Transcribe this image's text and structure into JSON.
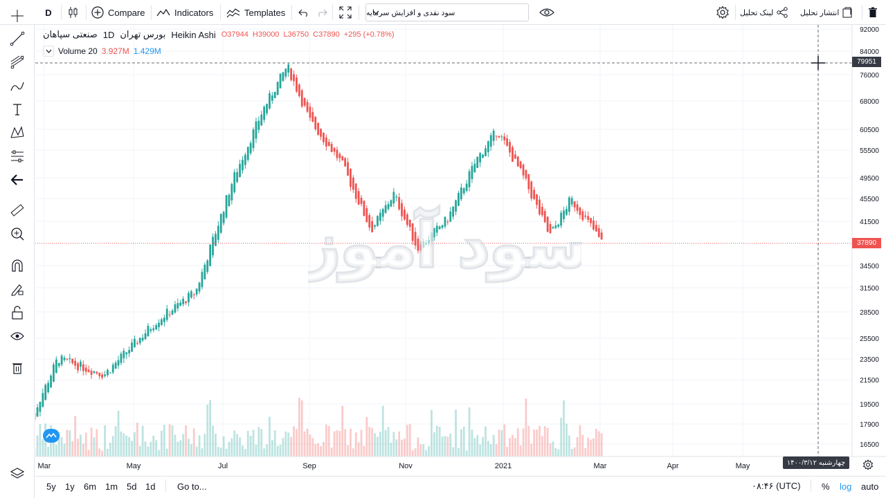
{
  "toolbar": {
    "interval": "D",
    "compare_label": "Compare",
    "indicators_label": "Indicators",
    "templates_label": "Templates",
    "symbol_select": "سود نقدی و افزایش سرمایه",
    "link_label": "لینک تحلیل",
    "publish_label": "انتشار تحلیل"
  },
  "legend": {
    "symbol": "صنعتی سپاهان",
    "interval": "1D",
    "exchange": "بورس تهران",
    "chart_type": "Heikin Ashi",
    "open": "O37944",
    "high": "H39000",
    "low": "L36750",
    "close": "C37890",
    "change": "+295 (+0.78%)"
  },
  "volume_legend": {
    "label": "Volume 20",
    "value1": "3.927M",
    "value2": "1.429M"
  },
  "watermark": "سود آموز",
  "price_axis": {
    "ticks": [
      "92000",
      "84000",
      "76000",
      "68000",
      "60500",
      "55500",
      "49500",
      "45500",
      "41500",
      "34500",
      "31500",
      "28500",
      "25500",
      "23500",
      "21500",
      "19500",
      "17900",
      "16500"
    ],
    "crosshair_price": "79951",
    "last_price": "37890"
  },
  "time_axis": {
    "ticks": [
      "Mar",
      "May",
      "Jul",
      "Sep",
      "Nov",
      "2021",
      "Mar",
      "Apr",
      "May"
    ],
    "crosshair_date": "چهارشنبه ۱۴۰۰/۳/۱۲"
  },
  "bottom": {
    "ranges": [
      "5y",
      "1y",
      "6m",
      "1m",
      "5d",
      "1d"
    ],
    "goto_label": "Go to...",
    "clock": "۰۸:۴۶ (UTC)",
    "percent_label": "%",
    "log_label": "log",
    "auto_label": "auto"
  },
  "colors": {
    "up": "#26a69a",
    "down": "#ef5350",
    "crosshair": "#363a45",
    "last_price": "#ef5350"
  },
  "chart_data": {
    "type": "candlestick",
    "style": "Heikin Ashi",
    "log_scale": true,
    "ylim": [
      16000,
      93000
    ],
    "series": [
      {
        "date": "2020-02-20",
        "close": 18000
      },
      {
        "date": "2020-03-10",
        "close": 23500
      },
      {
        "date": "2020-04-10",
        "close": 22000
      },
      {
        "date": "2020-05-15",
        "close": 27500
      },
      {
        "date": "2020-06-10",
        "close": 31000
      },
      {
        "date": "2020-07-05",
        "close": 49500
      },
      {
        "date": "2020-07-25",
        "close": 66000
      },
      {
        "date": "2020-08-10",
        "close": 79000
      },
      {
        "date": "2020-08-25",
        "close": 63000
      },
      {
        "date": "2020-09-15",
        "close": 53000
      },
      {
        "date": "2020-10-05",
        "close": 40000
      },
      {
        "date": "2020-10-20",
        "close": 46500
      },
      {
        "date": "2020-11-05",
        "close": 37000
      },
      {
        "date": "2020-11-25",
        "close": 42000
      },
      {
        "date": "2020-12-15",
        "close": 54000
      },
      {
        "date": "2020-12-28",
        "close": 60500
      },
      {
        "date": "2021-01-15",
        "close": 49500
      },
      {
        "date": "2021-02-01",
        "close": 39000
      },
      {
        "date": "2021-02-15",
        "close": 45500
      },
      {
        "date": "2021-03-01",
        "close": 40500
      },
      {
        "date": "2021-03-08",
        "close": 37890
      }
    ]
  }
}
